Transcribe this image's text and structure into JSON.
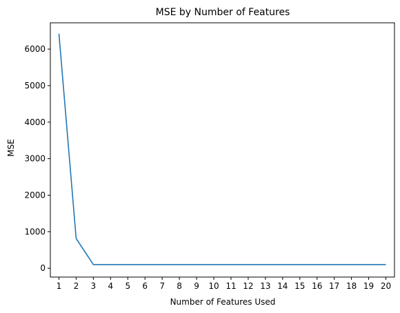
{
  "chart_data": {
    "type": "line",
    "title": "MSE by Number of Features",
    "xlabel": "Number of Features Used",
    "ylabel": "MSE",
    "x": [
      1,
      2,
      3,
      4,
      5,
      6,
      7,
      8,
      9,
      10,
      11,
      12,
      13,
      14,
      15,
      16,
      17,
      18,
      19,
      20
    ],
    "series": [
      {
        "values": [
          6420,
          815,
          100,
          100,
          100,
          99,
          99,
          99,
          99,
          99,
          99,
          99,
          99,
          99,
          99,
          99,
          99,
          99,
          99,
          99
        ],
        "color": "#1f77b4"
      }
    ],
    "x_ticks": [
      "1",
      "2",
      "3",
      "4",
      "5",
      "6",
      "7",
      "8",
      "9",
      "10",
      "11",
      "12",
      "13",
      "14",
      "15",
      "16",
      "17",
      "18",
      "19",
      "20"
    ],
    "y_ticks": [
      "0",
      "1000",
      "2000",
      "3000",
      "4000",
      "5000",
      "6000"
    ],
    "xlim": [
      0.5,
      20.5
    ],
    "ylim": [
      -242,
      6720
    ],
    "grid": false,
    "legend": false
  }
}
